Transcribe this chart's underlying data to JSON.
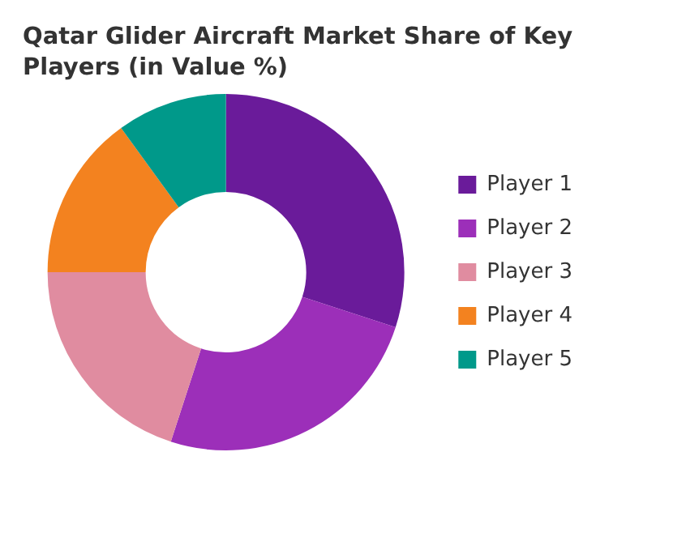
{
  "chart_data": {
    "type": "donut",
    "title": "Qatar Glider Aircraft Market Share of Key Players (in Value %)",
    "categories": [
      "Player 1",
      "Player 2",
      "Player 3",
      "Player 4",
      "Player 5"
    ],
    "values": [
      30,
      25,
      20,
      15,
      10
    ],
    "colors": [
      "#6a1b9a",
      "#9c2fb9",
      "#e08ca0",
      "#f3821f",
      "#00998a"
    ],
    "legend": "right"
  }
}
